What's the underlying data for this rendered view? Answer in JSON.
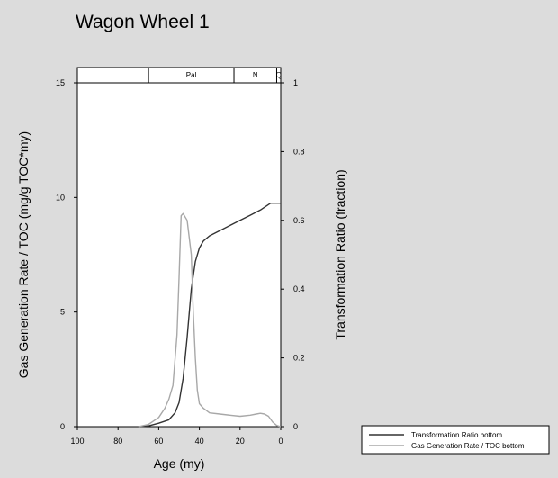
{
  "chart_data": {
    "type": "line",
    "title": "Wagon Wheel 1",
    "xlabel": "Age (my)",
    "ylabel_left": "Gas Generation Rate / TOC (mg/g TOC*my)",
    "ylabel_right": "Transformation Ratio (fraction)",
    "xlim": [
      100,
      0
    ],
    "ylim_left": [
      0,
      15
    ],
    "ylim_right": [
      0,
      1
    ],
    "x_ticks": [
      100,
      80,
      60,
      40,
      20,
      0
    ],
    "y_ticks_left": [
      0,
      5,
      10,
      15
    ],
    "y_ticks_right": [
      0,
      0.2,
      0.4,
      0.6,
      0.8,
      1
    ],
    "y_tick_labels_right": [
      "0",
      "0.2",
      "0.4",
      "0.6",
      "0.8",
      "1"
    ],
    "periods": [
      {
        "label": "",
        "from": 100,
        "to": 65
      },
      {
        "label": "Pal",
        "from": 65,
        "to": 23
      },
      {
        "label": "N",
        "from": 23,
        "to": 2
      },
      {
        "label": "Q",
        "from": 2,
        "to": 0
      }
    ],
    "series": [
      {
        "name": "Transformation Ratio bottom",
        "axis": "right",
        "color": "#333333",
        "x": [
          70,
          65,
          60,
          55,
          52,
          50,
          48,
          46,
          44,
          42,
          40,
          38,
          35,
          30,
          25,
          20,
          15,
          10,
          5,
          0
        ],
        "y": [
          0,
          0.002,
          0.01,
          0.02,
          0.04,
          0.07,
          0.14,
          0.26,
          0.4,
          0.48,
          0.52,
          0.54,
          0.555,
          0.57,
          0.585,
          0.6,
          0.615,
          0.63,
          0.65,
          0.65
        ]
      },
      {
        "name": "Gas Generation Rate / TOC bottom",
        "axis": "left",
        "color": "#a8a8a8",
        "x": [
          70,
          65,
          60,
          57,
          55,
          53,
          51,
          50,
          49,
          48,
          46,
          44,
          43,
          42,
          41,
          40,
          38,
          35,
          30,
          25,
          20,
          15,
          12,
          10,
          8,
          6,
          4,
          2,
          0
        ],
        "y": [
          0,
          0.1,
          0.4,
          0.8,
          1.2,
          1.8,
          4.0,
          6.5,
          9.2,
          9.3,
          9.0,
          7.5,
          5.0,
          3.0,
          1.6,
          1.0,
          0.8,
          0.6,
          0.55,
          0.5,
          0.45,
          0.5,
          0.55,
          0.58,
          0.55,
          0.45,
          0.2,
          0.05,
          0
        ]
      }
    ],
    "legend_position": "bottom-right",
    "grid": false
  }
}
